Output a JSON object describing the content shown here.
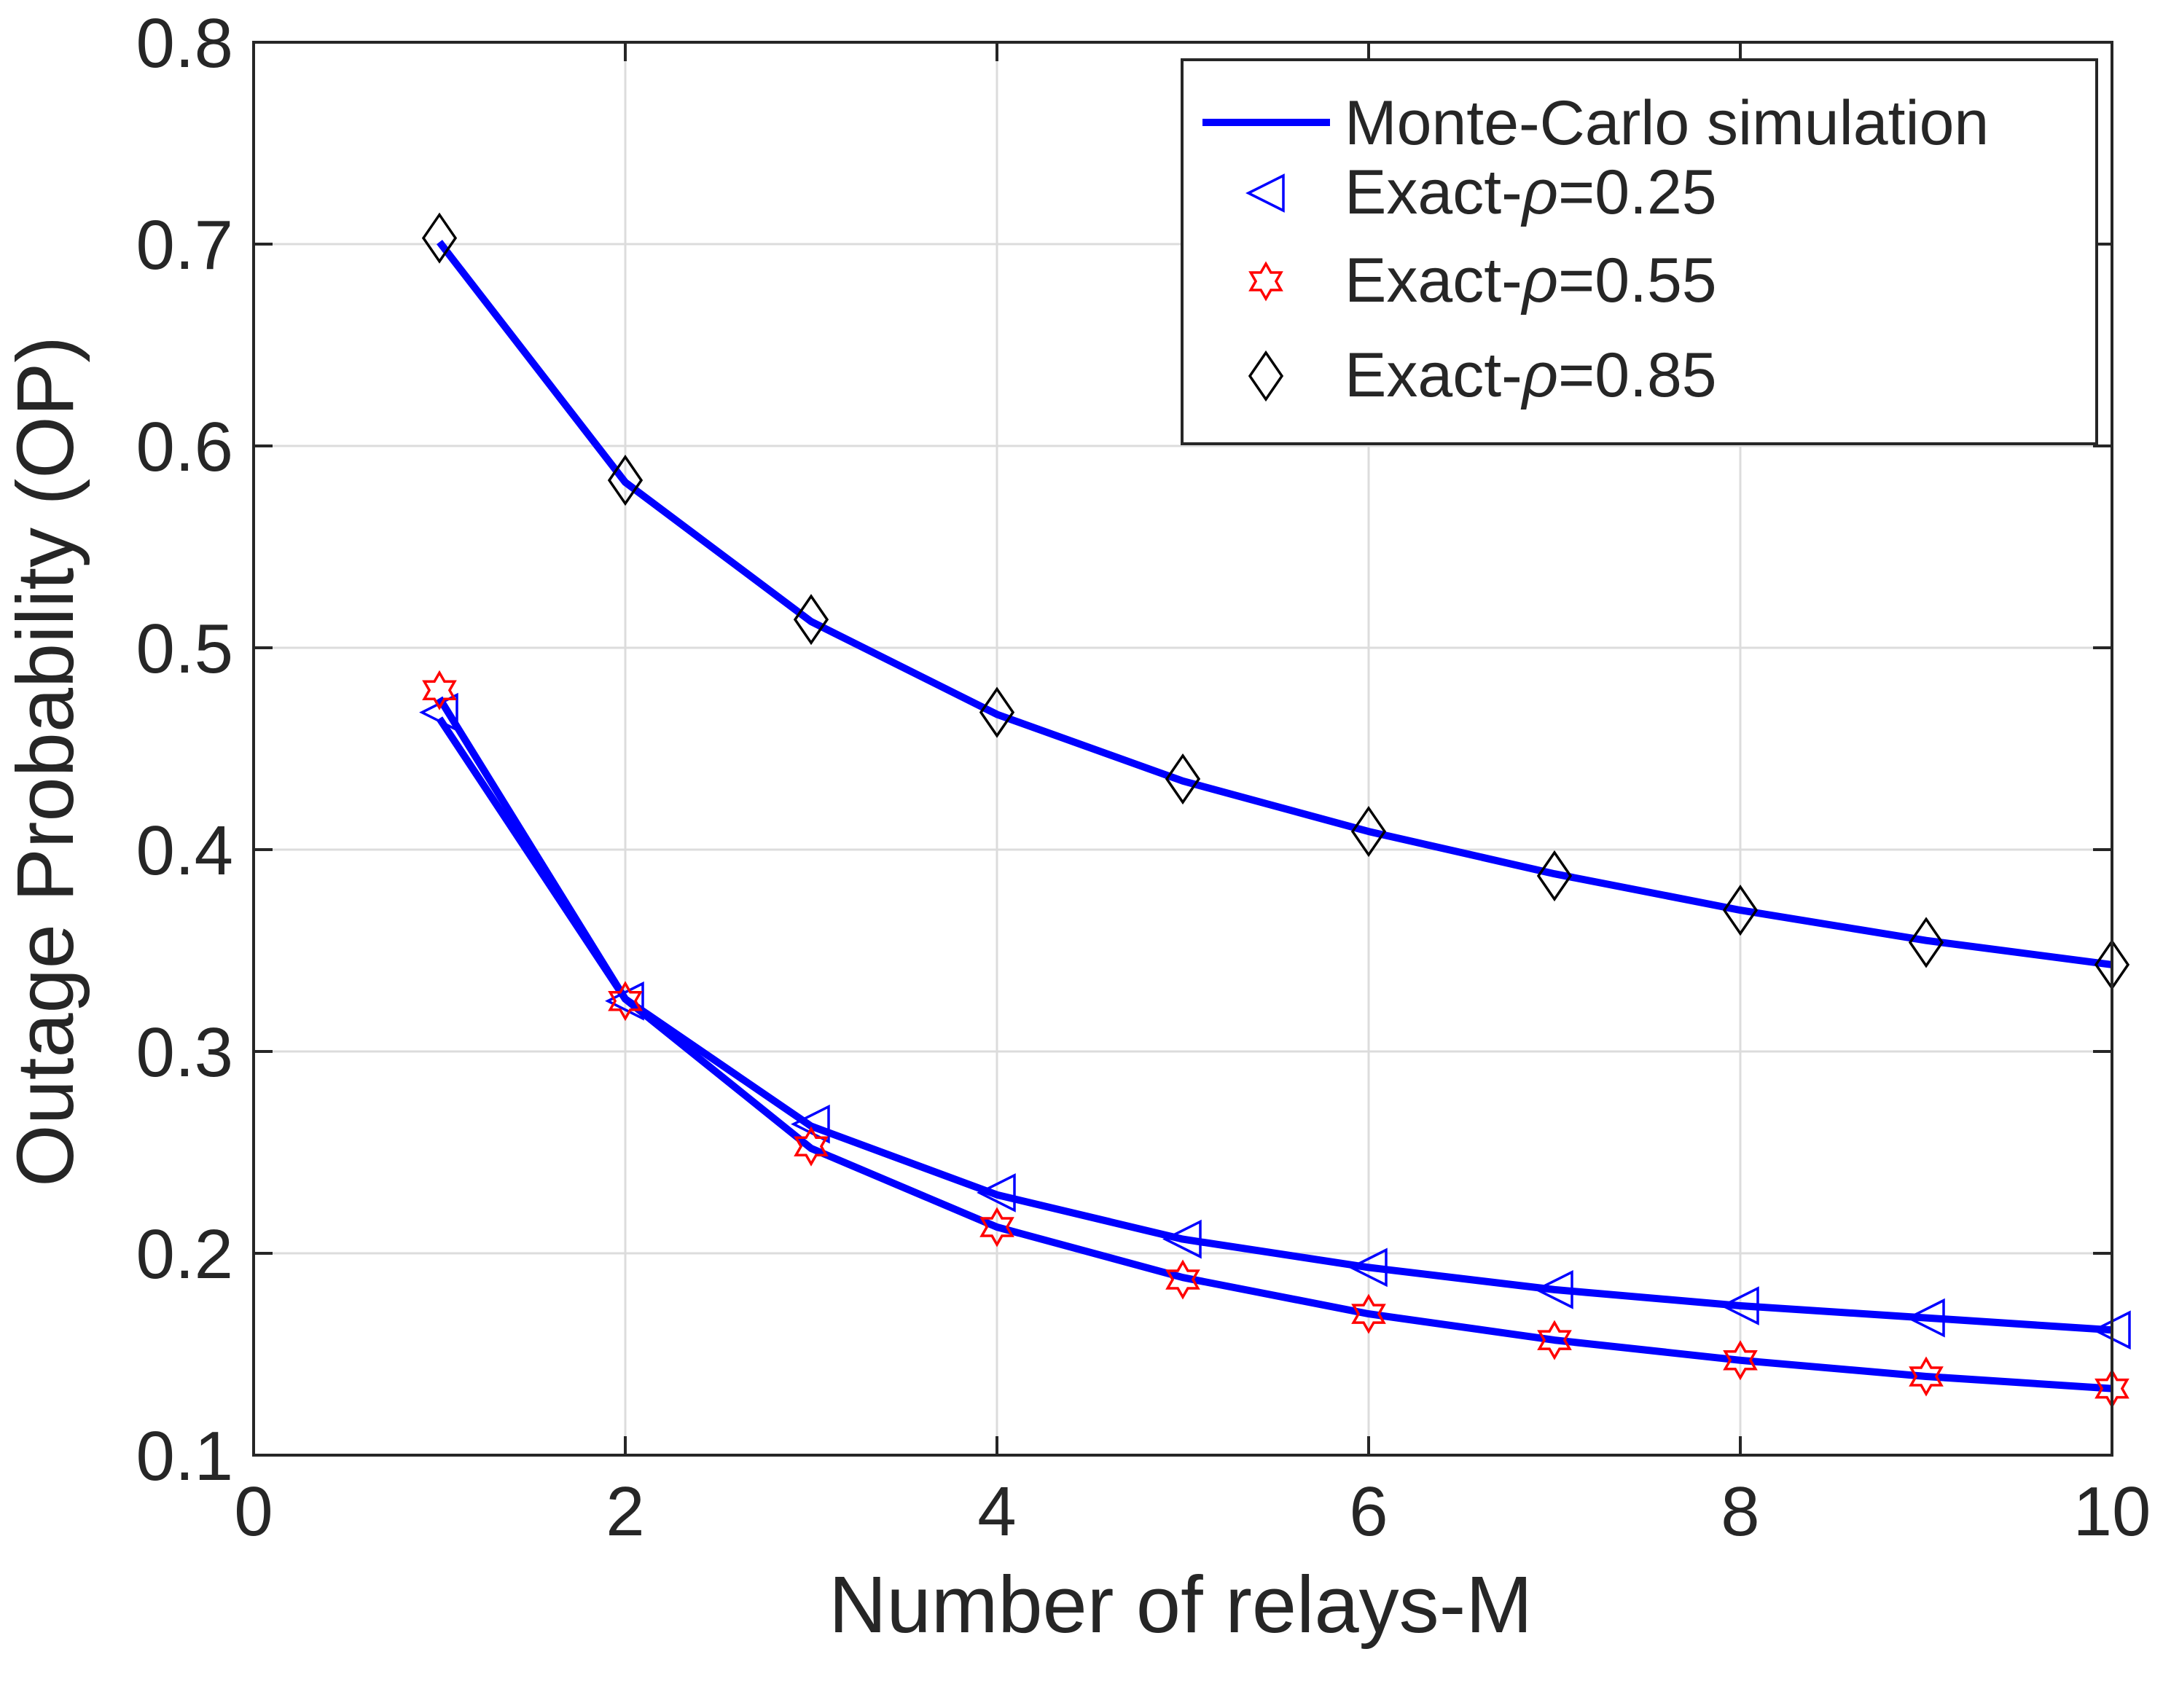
{
  "chart_data": {
    "type": "line",
    "title": "",
    "xlabel": "Number of relays-M",
    "ylabel": "Outage Probability (OP)",
    "xlim": [
      0,
      10
    ],
    "ylim": [
      0.1,
      0.8
    ],
    "xticks": [
      0,
      2,
      4,
      6,
      8,
      10
    ],
    "xtick_labels": [
      "0",
      "2",
      "4",
      "6",
      "8",
      "10"
    ],
    "yticks": [
      0.1,
      0.2,
      0.3,
      0.4,
      0.5,
      0.6,
      0.7,
      0.8
    ],
    "ytick_labels": [
      "0.1",
      "0.2",
      "0.3",
      "0.4",
      "0.5",
      "0.6",
      "0.7",
      "0.8"
    ],
    "grid": true,
    "legend_position": "top-right",
    "legend": {
      "sim_label": "Monte-Carlo simulation",
      "rho_prefix": "Exact-",
      "rho_symbol": "ρ",
      "entries": [
        {
          "marker": "left-triangle",
          "color": "#0000ff",
          "rho_value": "=0.25"
        },
        {
          "marker": "hexagram",
          "color": "#ff0000",
          "rho_value": "=0.55"
        },
        {
          "marker": "diamond",
          "color": "#000000",
          "rho_value": "=0.85"
        }
      ]
    },
    "x": [
      1,
      2,
      3,
      4,
      5,
      6,
      7,
      8,
      9,
      10
    ],
    "series": [
      {
        "name": "Exact-ρ=0.25",
        "marker": "left-triangle",
        "marker_color": "#0000ff",
        "line_color": "#0000ff",
        "simulation": [
          0.465,
          0.326,
          0.263,
          0.229,
          0.207,
          0.193,
          0.182,
          0.174,
          0.168,
          0.162
        ],
        "exact": [
          0.468,
          0.325,
          0.264,
          0.23,
          0.207,
          0.193,
          0.182,
          0.174,
          0.168,
          0.162
        ]
      },
      {
        "name": "Exact-ρ=0.55",
        "marker": "hexagram",
        "marker_color": "#ff0000",
        "line_color": "#0000ff",
        "simulation": [
          0.475,
          0.326,
          0.252,
          0.213,
          0.188,
          0.17,
          0.157,
          0.147,
          0.139,
          0.133
        ],
        "exact": [
          0.479,
          0.325,
          0.253,
          0.213,
          0.187,
          0.17,
          0.157,
          0.147,
          0.139,
          0.133
        ]
      },
      {
        "name": "Exact-ρ=0.85",
        "marker": "diamond",
        "marker_color": "#000000",
        "line_color": "#0000ff",
        "simulation": [
          0.701,
          0.582,
          0.513,
          0.467,
          0.434,
          0.409,
          0.388,
          0.37,
          0.355,
          0.343
        ],
        "exact": [
          0.703,
          0.583,
          0.514,
          0.468,
          0.435,
          0.409,
          0.387,
          0.37,
          0.354,
          0.343
        ]
      }
    ]
  }
}
